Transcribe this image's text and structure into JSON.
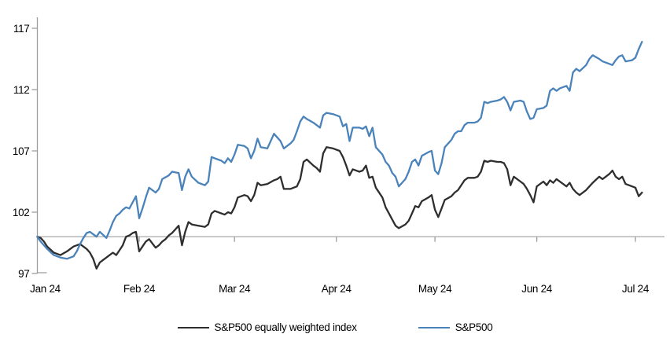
{
  "chart_data": {
    "type": "line",
    "title": "",
    "x_axis": {
      "tick_labels": [
        "Jan 24",
        "Feb 24",
        "Mar 24",
        "Apr 24",
        "May 24",
        "Jun 24",
        "Jul 24"
      ],
      "tick_days": [
        0,
        31,
        60,
        91,
        121,
        152,
        182
      ],
      "range_days": [
        0,
        184
      ]
    },
    "y_axis": {
      "tick_labels": [
        "97",
        "102",
        "107",
        "112",
        "117"
      ],
      "ticks": [
        97,
        102,
        107,
        112,
        117
      ],
      "range": [
        97,
        117.9
      ],
      "baseline_value": 100,
      "gridlines": false
    },
    "colors": {
      "equal_weight_line": "#2e2e2e",
      "sp500_line": "#4a82ba",
      "axis_gray": "#9d9d9d",
      "text": "#000000"
    },
    "legend_position": "bottom-center",
    "series": [
      {
        "name": "S&P500 equally weighted index",
        "color": "#2e2e2e",
        "points": [
          [
            0,
            100.0
          ],
          [
            1,
            99.9
          ],
          [
            2,
            99.6
          ],
          [
            3,
            99.2
          ],
          [
            5,
            98.7
          ],
          [
            7,
            98.5
          ],
          [
            9,
            98.8
          ],
          [
            11,
            99.2
          ],
          [
            13,
            99.4
          ],
          [
            14,
            99.2
          ],
          [
            15,
            99.0
          ],
          [
            16,
            98.7
          ],
          [
            17,
            98.2
          ],
          [
            18,
            97.4
          ],
          [
            19,
            97.9
          ],
          [
            20,
            98.1
          ],
          [
            21,
            98.3
          ],
          [
            22,
            98.5
          ],
          [
            23,
            98.7
          ],
          [
            24,
            98.5
          ],
          [
            25,
            98.9
          ],
          [
            26,
            99.3
          ],
          [
            27,
            100.0
          ],
          [
            28,
            100.1
          ],
          [
            29,
            100.3
          ],
          [
            30,
            100.4
          ],
          [
            31,
            98.8
          ],
          [
            32,
            99.2
          ],
          [
            33,
            99.6
          ],
          [
            34,
            99.8
          ],
          [
            36,
            99.1
          ],
          [
            37,
            99.3
          ],
          [
            38,
            99.6
          ],
          [
            39,
            99.8
          ],
          [
            40,
            100.1
          ],
          [
            41,
            100.3
          ],
          [
            43,
            100.9
          ],
          [
            44,
            99.3
          ],
          [
            45,
            100.4
          ],
          [
            46,
            101.2
          ],
          [
            47,
            101.0
          ],
          [
            49,
            100.9
          ],
          [
            51,
            100.8
          ],
          [
            52,
            101.0
          ],
          [
            53,
            101.9
          ],
          [
            54,
            102.1
          ],
          [
            56,
            101.9
          ],
          [
            57,
            101.8
          ],
          [
            58,
            102.0
          ],
          [
            59,
            101.9
          ],
          [
            60,
            102.4
          ],
          [
            61,
            103.2
          ],
          [
            63,
            103.4
          ],
          [
            64,
            103.3
          ],
          [
            65,
            102.9
          ],
          [
            66,
            103.4
          ],
          [
            67,
            104.4
          ],
          [
            68,
            104.2
          ],
          [
            70,
            104.3
          ],
          [
            72,
            104.6
          ],
          [
            73,
            104.7
          ],
          [
            74,
            104.9
          ],
          [
            75,
            103.9
          ],
          [
            77,
            103.9
          ],
          [
            78,
            104.0
          ],
          [
            79,
            104.1
          ],
          [
            80,
            104.7
          ],
          [
            81,
            106.1
          ],
          [
            82,
            106.3
          ],
          [
            84,
            105.8
          ],
          [
            85,
            105.6
          ],
          [
            86,
            105.3
          ],
          [
            87,
            106.8
          ],
          [
            88,
            107.3
          ],
          [
            90,
            107.2
          ],
          [
            92,
            107.0
          ],
          [
            93,
            106.5
          ],
          [
            94,
            105.8
          ],
          [
            95,
            105.0
          ],
          [
            96,
            105.5
          ],
          [
            98,
            105.3
          ],
          [
            99,
            105.4
          ],
          [
            100,
            105.8
          ],
          [
            101,
            104.8
          ],
          [
            102,
            104.9
          ],
          [
            103,
            104.0
          ],
          [
            105,
            103.2
          ],
          [
            106,
            102.4
          ],
          [
            107,
            101.9
          ],
          [
            108,
            101.4
          ],
          [
            109,
            100.9
          ],
          [
            110,
            100.7
          ],
          [
            112,
            101.0
          ],
          [
            113,
            101.3
          ],
          [
            114,
            101.9
          ],
          [
            115,
            102.5
          ],
          [
            116,
            102.4
          ],
          [
            117,
            102.9
          ],
          [
            119,
            103.2
          ],
          [
            120,
            103.4
          ],
          [
            121,
            102.2
          ],
          [
            122,
            101.6
          ],
          [
            123,
            102.3
          ],
          [
            124,
            103.0
          ],
          [
            126,
            103.3
          ],
          [
            127,
            103.6
          ],
          [
            128,
            103.8
          ],
          [
            129,
            104.2
          ],
          [
            130,
            104.6
          ],
          [
            131,
            104.8
          ],
          [
            133,
            104.8
          ],
          [
            134,
            104.9
          ],
          [
            135,
            105.3
          ],
          [
            136,
            106.2
          ],
          [
            137,
            106.1
          ],
          [
            138,
            106.2
          ],
          [
            140,
            106.1
          ],
          [
            141,
            106.1
          ],
          [
            142,
            106.0
          ],
          [
            143,
            105.5
          ],
          [
            144,
            104.2
          ],
          [
            145,
            104.9
          ],
          [
            147,
            104.5
          ],
          [
            148,
            104.3
          ],
          [
            149,
            103.9
          ],
          [
            150,
            103.4
          ],
          [
            151,
            102.8
          ],
          [
            152,
            104.1
          ],
          [
            154,
            104.5
          ],
          [
            155,
            104.2
          ],
          [
            156,
            104.6
          ],
          [
            157,
            104.4
          ],
          [
            158,
            104.7
          ],
          [
            160,
            104.3
          ],
          [
            161,
            104.1
          ],
          [
            162,
            104.4
          ],
          [
            163,
            103.9
          ],
          [
            164,
            103.6
          ],
          [
            165,
            103.4
          ],
          [
            167,
            103.8
          ],
          [
            168,
            104.1
          ],
          [
            169,
            104.4
          ],
          [
            171,
            104.9
          ],
          [
            172,
            104.7
          ],
          [
            174,
            105.1
          ],
          [
            175,
            105.4
          ],
          [
            176,
            104.9
          ],
          [
            177,
            104.7
          ],
          [
            178,
            104.9
          ],
          [
            179,
            104.3
          ],
          [
            181,
            104.1
          ],
          [
            182,
            104.0
          ],
          [
            183,
            103.3
          ],
          [
            184,
            103.6
          ]
        ]
      },
      {
        "name": "S&P500",
        "color": "#4a82ba",
        "points": [
          [
            0,
            100.0
          ],
          [
            1,
            99.6
          ],
          [
            3,
            99.0
          ],
          [
            5,
            98.5
          ],
          [
            7,
            98.3
          ],
          [
            9,
            98.2
          ],
          [
            11,
            98.4
          ],
          [
            12,
            98.8
          ],
          [
            13,
            99.4
          ],
          [
            14,
            99.9
          ],
          [
            15,
            100.3
          ],
          [
            16,
            100.4
          ],
          [
            17,
            100.2
          ],
          [
            18,
            100.0
          ],
          [
            19,
            100.4
          ],
          [
            21,
            99.9
          ],
          [
            22,
            100.5
          ],
          [
            23,
            101.2
          ],
          [
            24,
            101.7
          ],
          [
            25,
            101.9
          ],
          [
            26,
            102.2
          ],
          [
            27,
            102.4
          ],
          [
            28,
            102.3
          ],
          [
            29,
            102.8
          ],
          [
            30,
            103.3
          ],
          [
            31,
            101.5
          ],
          [
            32,
            102.3
          ],
          [
            33,
            103.2
          ],
          [
            34,
            104.0
          ],
          [
            36,
            103.6
          ],
          [
            37,
            103.9
          ],
          [
            38,
            104.7
          ],
          [
            40,
            105.0
          ],
          [
            41,
            105.3
          ],
          [
            43,
            105.2
          ],
          [
            44,
            103.8
          ],
          [
            45,
            104.9
          ],
          [
            46,
            105.5
          ],
          [
            47,
            104.9
          ],
          [
            49,
            104.4
          ],
          [
            51,
            104.2
          ],
          [
            52,
            104.5
          ],
          [
            53,
            106.5
          ],
          [
            54,
            106.4
          ],
          [
            56,
            106.2
          ],
          [
            57,
            106.0
          ],
          [
            58,
            106.4
          ],
          [
            59,
            106.1
          ],
          [
            60,
            106.7
          ],
          [
            61,
            107.5
          ],
          [
            63,
            107.4
          ],
          [
            64,
            107.2
          ],
          [
            65,
            106.4
          ],
          [
            66,
            107.0
          ],
          [
            67,
            108.0
          ],
          [
            68,
            107.3
          ],
          [
            70,
            107.2
          ],
          [
            72,
            108.4
          ],
          [
            73,
            108.1
          ],
          [
            74,
            107.8
          ],
          [
            75,
            107.2
          ],
          [
            77,
            107.6
          ],
          [
            78,
            107.9
          ],
          [
            79,
            108.6
          ],
          [
            80,
            109.4
          ],
          [
            81,
            109.8
          ],
          [
            82,
            109.6
          ],
          [
            84,
            109.3
          ],
          [
            85,
            109.1
          ],
          [
            86,
            108.9
          ],
          [
            87,
            109.9
          ],
          [
            88,
            110.1
          ],
          [
            90,
            110.0
          ],
          [
            92,
            109.8
          ],
          [
            93,
            109.0
          ],
          [
            94,
            109.2
          ],
          [
            95,
            107.8
          ],
          [
            96,
            108.9
          ],
          [
            98,
            108.9
          ],
          [
            99,
            108.8
          ],
          [
            100,
            109.0
          ],
          [
            101,
            108.2
          ],
          [
            102,
            108.9
          ],
          [
            103,
            107.3
          ],
          [
            105,
            106.7
          ],
          [
            106,
            106.1
          ],
          [
            107,
            105.8
          ],
          [
            108,
            105.2
          ],
          [
            109,
            104.9
          ],
          [
            110,
            104.1
          ],
          [
            112,
            104.7
          ],
          [
            113,
            105.3
          ],
          [
            114,
            106.1
          ],
          [
            115,
            106.3
          ],
          [
            116,
            105.8
          ],
          [
            117,
            106.6
          ],
          [
            119,
            106.9
          ],
          [
            120,
            107.0
          ],
          [
            121,
            105.4
          ],
          [
            122,
            105.1
          ],
          [
            123,
            106.0
          ],
          [
            124,
            107.3
          ],
          [
            126,
            107.9
          ],
          [
            127,
            108.4
          ],
          [
            128,
            108.6
          ],
          [
            129,
            108.6
          ],
          [
            130,
            109.1
          ],
          [
            131,
            109.3
          ],
          [
            133,
            109.3
          ],
          [
            134,
            109.4
          ],
          [
            135,
            109.7
          ],
          [
            136,
            111.0
          ],
          [
            137,
            110.9
          ],
          [
            138,
            111.0
          ],
          [
            140,
            111.1
          ],
          [
            141,
            111.2
          ],
          [
            142,
            111.4
          ],
          [
            143,
            111.0
          ],
          [
            144,
            110.3
          ],
          [
            145,
            111.0
          ],
          [
            147,
            111.1
          ],
          [
            148,
            111.0
          ],
          [
            149,
            110.2
          ],
          [
            150,
            109.6
          ],
          [
            151,
            109.7
          ],
          [
            152,
            110.4
          ],
          [
            154,
            110.5
          ],
          [
            155,
            110.7
          ],
          [
            156,
            111.9
          ],
          [
            157,
            112.1
          ],
          [
            158,
            111.9
          ],
          [
            159,
            112.1
          ],
          [
            161,
            112.3
          ],
          [
            162,
            111.9
          ],
          [
            163,
            113.4
          ],
          [
            164,
            113.7
          ],
          [
            165,
            113.5
          ],
          [
            167,
            114.0
          ],
          [
            168,
            114.5
          ],
          [
            169,
            114.8
          ],
          [
            171,
            114.5
          ],
          [
            172,
            114.3
          ],
          [
            174,
            114.1
          ],
          [
            175,
            114.0
          ],
          [
            176,
            114.4
          ],
          [
            177,
            114.7
          ],
          [
            178,
            114.8
          ],
          [
            179,
            114.3
          ],
          [
            181,
            114.4
          ],
          [
            182,
            114.6
          ],
          [
            183,
            115.3
          ],
          [
            184,
            115.9
          ]
        ]
      }
    ]
  }
}
